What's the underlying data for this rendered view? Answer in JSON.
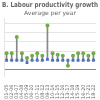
{
  "chart_data": {
    "type": "dumbbell",
    "title": "B. Labour productivity growth",
    "subtitle": "Average per year",
    "categories": [
      "01-05",
      "02-06",
      "03-07",
      "04-08",
      "05-09",
      "06-10",
      "07-11",
      "08-12",
      "09-13",
      "10-14",
      "11-15",
      "12-16",
      "13-17",
      "14-18",
      "15-19",
      "16-20",
      "17-21",
      "18-22"
    ],
    "series": [
      {
        "color": "#4472c4",
        "marker": "square",
        "values": [
          2.0,
          2.0,
          2.0,
          2.0,
          1.5,
          2.0,
          2.0,
          2.0,
          2.2,
          2.0,
          2.0,
          2.0,
          2.0,
          2.0,
          2.0,
          2.0,
          2.0,
          2.0
        ]
      },
      {
        "color": "#70ad47",
        "marker": "circle",
        "values": [
          3.5,
          3.5,
          7.0,
          3.5,
          2.5,
          3.0,
          3.5,
          3.0,
          9.5,
          3.5,
          3.2,
          3.0,
          0.8,
          3.0,
          3.5,
          3.5,
          3.0,
          3.5
        ]
      }
    ],
    "color": "#888888",
    "ylim": [
      -1.5,
      11.0
    ],
    "yticks": [
      0,
      2,
      4,
      6,
      8,
      10
    ],
    "grid": true,
    "tick_labels": "x"
  }
}
